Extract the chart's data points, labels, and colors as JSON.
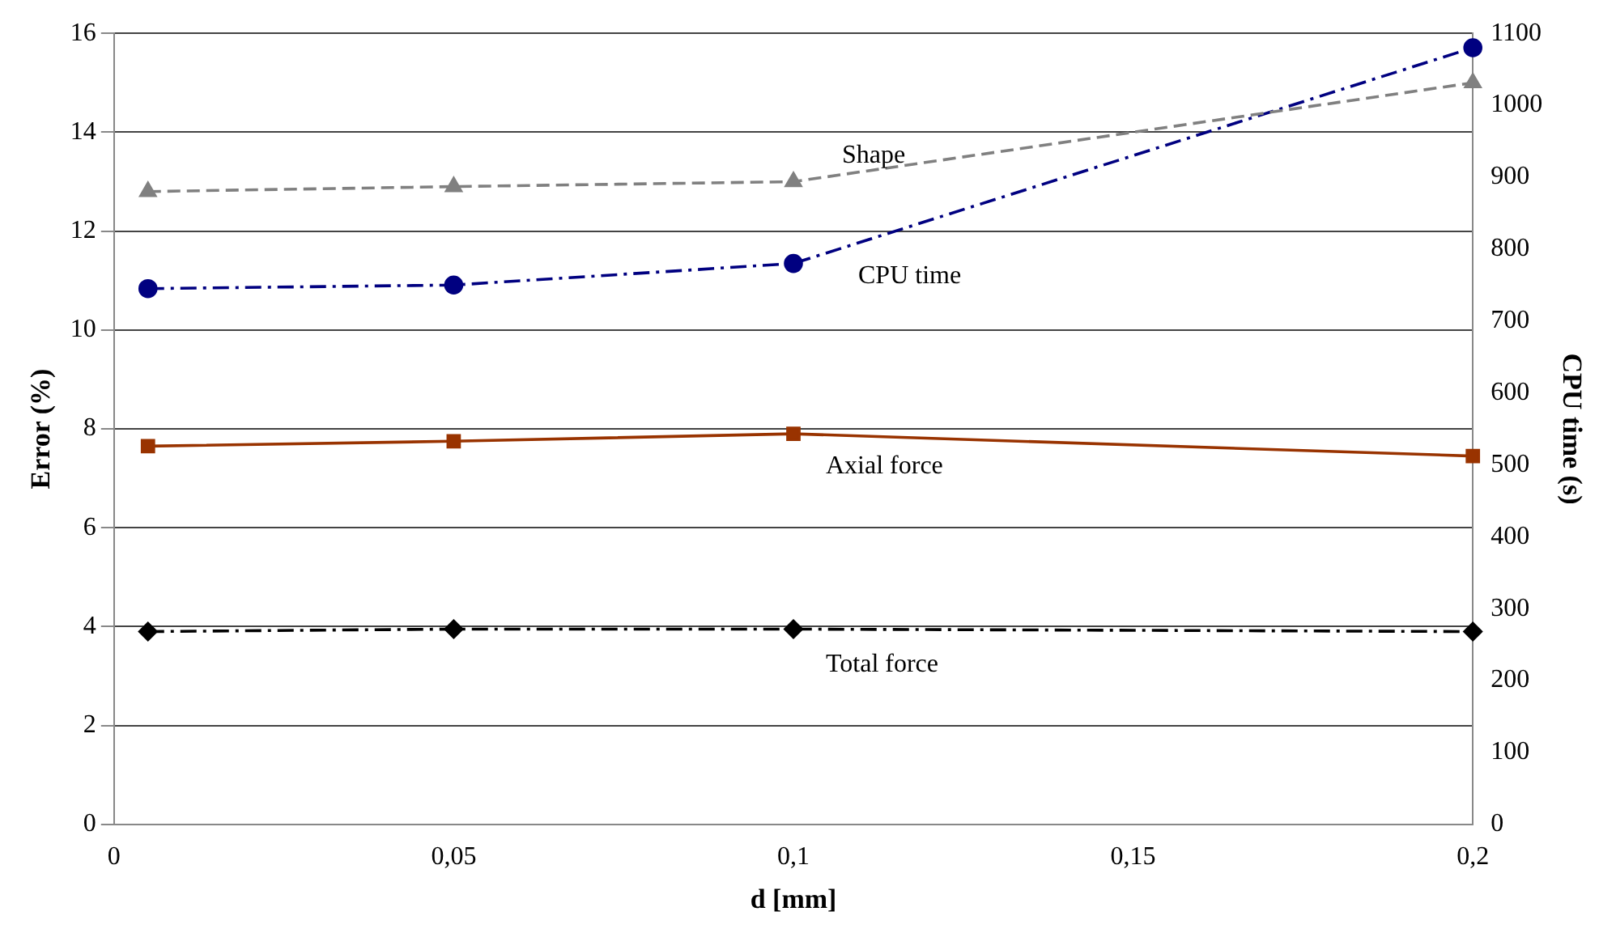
{
  "chart_data": {
    "type": "line",
    "xlabel": "d [mm]",
    "ylabel": "Error (%)",
    "y2label": "CPU time (s)",
    "xlim": [
      0,
      0.2
    ],
    "xticks": [
      0,
      {
        "value": 0.05,
        "label": "0,05"
      },
      {
        "value": 0.1,
        "label": "0,1"
      },
      {
        "value": 0.15,
        "label": "0,15"
      },
      {
        "value": 0.2,
        "label": "0,2"
      }
    ],
    "ylim": [
      0,
      16
    ],
    "yticks": [
      0,
      2,
      4,
      6,
      8,
      10,
      12,
      14,
      16
    ],
    "y2lim": [
      0,
      1100
    ],
    "y2ticks": [
      0,
      100,
      200,
      300,
      400,
      500,
      600,
      700,
      800,
      900,
      1000,
      1100
    ],
    "grid": "y",
    "legend": false,
    "series": [
      {
        "name": "Shape",
        "color": "#808080",
        "x": [
          0.005,
          0.05,
          0.1,
          0.2
        ],
        "values": [
          12.8,
          12.9,
          13.0,
          15.0
        ],
        "marker": "triangle",
        "line_style": "dashed"
      },
      {
        "name": "CPU time",
        "color": "#000080",
        "x": [
          0.005,
          0.05,
          0.1,
          0.2
        ],
        "values": [
          745,
          750,
          780,
          1080
        ],
        "axis": "y2",
        "marker": "circle",
        "line_style": "dashdot"
      },
      {
        "name": "Axial force",
        "color": "#993300",
        "x": [
          0.005,
          0.05,
          0.1,
          0.2
        ],
        "values": [
          7.65,
          7.75,
          7.9,
          7.45
        ],
        "marker": "square",
        "line_style": "solid"
      },
      {
        "name": "Total force",
        "color": "#000000",
        "x": [
          0.005,
          0.05,
          0.1,
          0.2
        ],
        "values": [
          3.9,
          3.95,
          3.95,
          3.9
        ],
        "marker": "diamond",
        "line_style": "dashdot"
      }
    ]
  }
}
